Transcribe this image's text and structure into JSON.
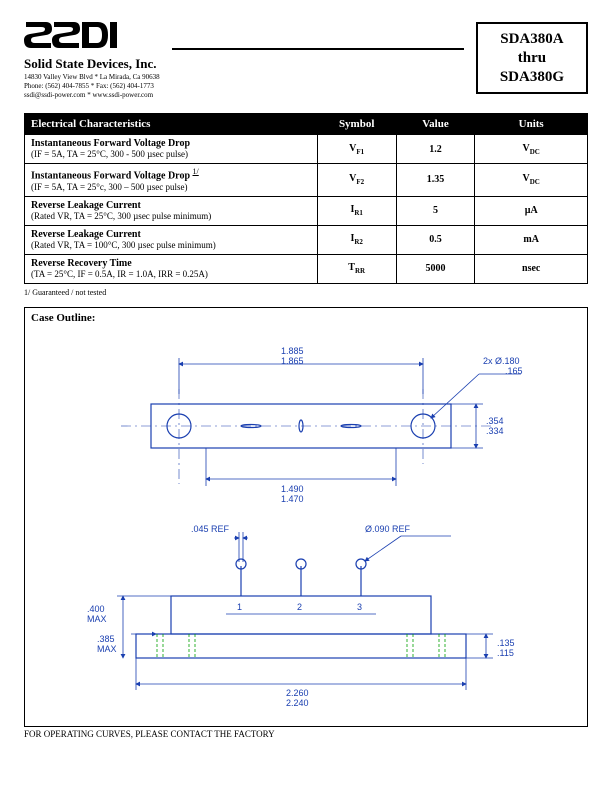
{
  "header": {
    "company_name": "Solid State Devices, Inc.",
    "addr_line1": "14830 Valley View Blvd  *  La Mirada, Ca 90638",
    "addr_line2": "Phone: (562) 404-7855  *  Fax: (562) 404-1773",
    "addr_line3": "ssdi@ssdi-power.com  *  www.ssdi-power.com",
    "part_top": "SDA380A",
    "part_mid": "thru",
    "part_bot": "SDA380G"
  },
  "table": {
    "headers": [
      "Electrical Characteristics",
      "Symbol",
      "Value",
      "Units"
    ],
    "rows": [
      {
        "title": "Instantaneous Forward Voltage Drop",
        "cond": "(IF = 5A, TA = 25°C, 300  - 500 µsec pulse)",
        "sym_main": "V",
        "sym_sub": "F1",
        "value": "1.2",
        "unit_main": "V",
        "unit_sub": "DC"
      },
      {
        "title": "Instantaneous Forward Voltage Drop",
        "title_note": "1/",
        "cond": "(IF = 5A, TA = 25°c, 300 – 500 µsec pulse)",
        "sym_main": "V",
        "sym_sub": "F2",
        "value": "1.35",
        "unit_main": "V",
        "unit_sub": "DC"
      },
      {
        "title": "Reverse Leakage Current",
        "cond": "(Rated VR, TA = 25°C, 300 µsec pulse minimum)",
        "sym_main": "I",
        "sym_sub": "R1",
        "value": "5",
        "unit_main": "µA",
        "unit_sub": ""
      },
      {
        "title": "Reverse Leakage Current",
        "cond": "(Rated VR, TA = 100°C, 300 µsec pulse minimum)",
        "sym_main": "I",
        "sym_sub": "R2",
        "value": "0.5",
        "unit_main": "mA",
        "unit_sub": ""
      },
      {
        "title": "Reverse Recovery Time",
        "cond": "(TA = 25°C, IF = 0.5A, IR = 1.0A, IRR = 0.25A)",
        "sym_main": "T",
        "sym_sub": "RR",
        "value": "5000",
        "unit_main": "nsec",
        "unit_sub": ""
      }
    ],
    "footnote": "1/ Guaranteed / not tested"
  },
  "case": {
    "title": "Case Outline:",
    "bottom_note": "FOR OPERATING CURVES, PLEASE CONTACT THE FACTORY",
    "colors": {
      "line": "#1a3fb0",
      "hatch": "#00a000",
      "text": "#1a3fb0"
    },
    "top_view": {
      "length_dim": [
        "1.885",
        "1.865"
      ],
      "inner_dim": [
        "1.490",
        "1.470"
      ],
      "height_dim": [
        ".354",
        ".334"
      ],
      "hole_dim": [
        "2x Ø",
        ".180",
        ".165"
      ]
    },
    "side_view": {
      "pin_ref": ".045 REF",
      "hole_ref": "Ø.090 REF",
      "height_max": [
        ".400",
        "MAX"
      ],
      "base_max": [
        ".385",
        "MAX"
      ],
      "base_thick": [
        ".135",
        ".115"
      ],
      "length_dim": [
        "2.260",
        "2.240"
      ],
      "pins": [
        "1",
        "2",
        "3"
      ]
    }
  }
}
